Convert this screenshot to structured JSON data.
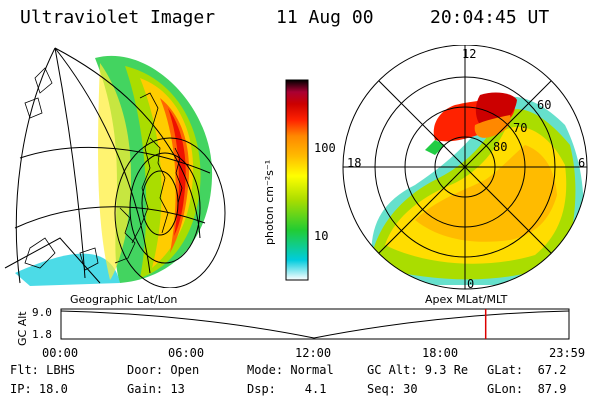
{
  "header": {
    "instrument": "Ultraviolet Imager",
    "date": "11 Aug 00",
    "time": "20:04:45 UT"
  },
  "geo_panel": {
    "label": "Geographic Lat/Lon"
  },
  "polar_panel": {
    "label": "Apex MLat/MLT",
    "mlt_labels": [
      "12",
      "18",
      "6",
      "0"
    ],
    "lat_labels": [
      "60",
      "70",
      "80"
    ]
  },
  "colorbar": {
    "unit_label": "photon cm⁻²s⁻¹",
    "tick_labels": [
      "100",
      "10"
    ],
    "scale": "log",
    "colors": [
      "#ffffff",
      "#00ccdd",
      "#22cc33",
      "#aadd00",
      "#ffff00",
      "#ffbb00",
      "#ff8800",
      "#ff2200",
      "#cc0000",
      "#aa0033",
      "#330044",
      "#000000"
    ]
  },
  "timeline": {
    "ylabel": "GC Alt",
    "y_ticks": [
      "9.0",
      "1.8"
    ],
    "x_ticks": [
      "00:00",
      "06:00",
      "12:00",
      "18:00",
      "23:59"
    ],
    "marker_color": "#dd0000",
    "marker_time_fraction": 0.836
  },
  "info": {
    "flt": "Flt: LBHS",
    "ip": "IP: 18.0",
    "door": "Door: Open",
    "gain": "Gain: 13",
    "mode": "Mode: Normal",
    "dsp": "Dsp:    4.1",
    "gc_alt": "GC Alt: 9.3 Re",
    "seq": "Seq: 30",
    "glat": "GLat:  67.2",
    "glon": "GLon:  87.9"
  }
}
